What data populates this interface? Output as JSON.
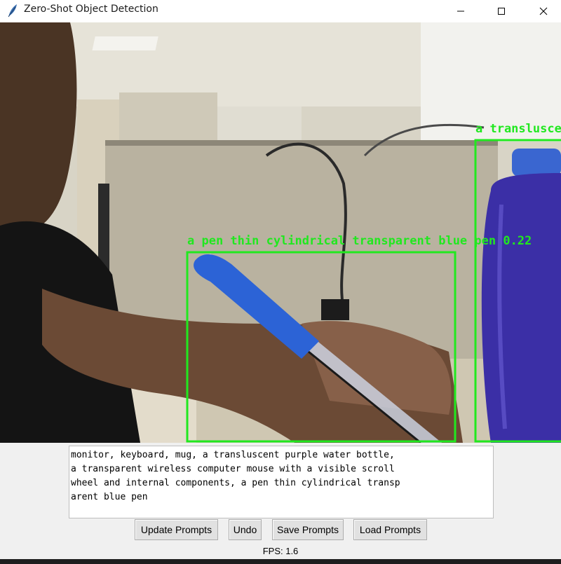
{
  "window": {
    "title": "Zero-Shot Object Detection",
    "controls": [
      "minimize",
      "maximize",
      "close"
    ]
  },
  "camera_feed": {
    "detections": [
      {
        "label_text": "a pen thin cylindrical transparent blue pen 0.22",
        "color": "#21e81f"
      },
      {
        "label_text": "a transluscent",
        "color": "#21e81f"
      }
    ]
  },
  "prompt_editor": {
    "lines": [
      "monitor, keyboard, mug, a transluscent purple water bottle,",
      "a transparent wireless computer mouse with a visible scroll",
      "wheel and internal components, a pen thin cylindrical transp",
      "arent blue pen"
    ]
  },
  "buttons": {
    "update": "Update Prompts",
    "undo": "Undo",
    "save": "Save Prompts",
    "load": "Load Prompts"
  },
  "status": {
    "fps": "FPS: 1.6"
  },
  "colors": {
    "detection_box": "#21e81f",
    "window_bg": "#f0f0f0"
  },
  "icons": [
    "feather-icon",
    "minimize-icon",
    "maximize-icon",
    "close-icon"
  ]
}
